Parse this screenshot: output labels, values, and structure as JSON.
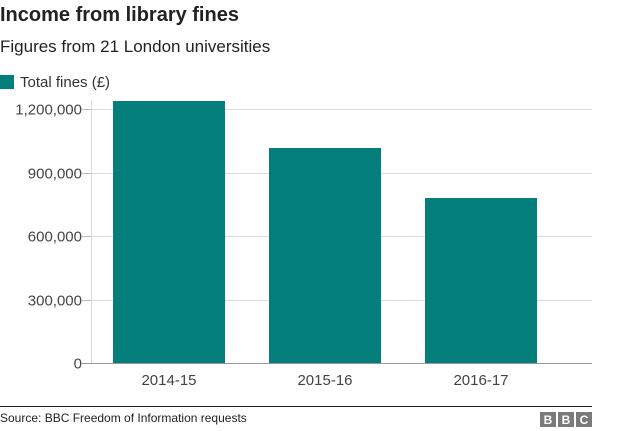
{
  "header": {
    "title": "Income from library fines",
    "subtitle": "Figures from 21 London universities"
  },
  "legend": {
    "label": "Total fines (£)",
    "color": "#037e7b"
  },
  "footer": {
    "source": "Source: BBC Freedom of Information requests",
    "logo_letters": [
      "B",
      "B",
      "C"
    ]
  },
  "chart_data": {
    "type": "bar",
    "title": "Income from library fines",
    "subtitle": "Figures from 21 London universities",
    "xlabel": "",
    "ylabel": "",
    "categories": [
      "2014-15",
      "2015-16",
      "2016-17"
    ],
    "series": [
      {
        "name": "Total fines (£)",
        "values": [
          1238000,
          1016000,
          779000
        ],
        "color": "#037e7b"
      }
    ],
    "yticks": [
      0,
      300000,
      600000,
      900000,
      1200000
    ],
    "ytick_labels": [
      "0",
      "300,000",
      "600,000",
      "900,000",
      "1,200,000"
    ],
    "ylim": [
      0,
      1250000
    ],
    "grid": true,
    "legend_position": "top-left",
    "source": "Source: BBC Freedom of Information requests"
  }
}
